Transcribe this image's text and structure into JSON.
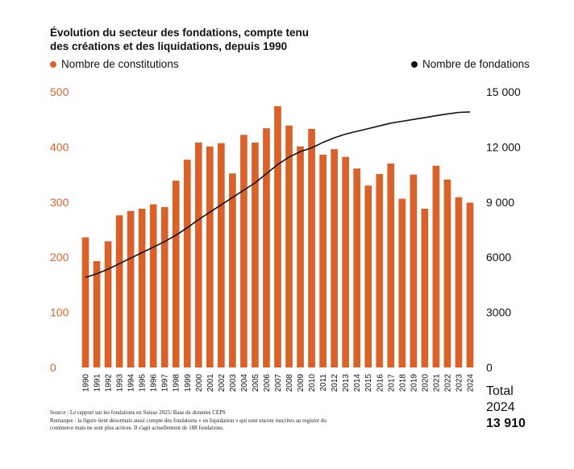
{
  "title": "Évolution du secteur des fondations, compte tenu des créations et des liquidations, depuis 1990",
  "legend": {
    "bars": "Nombre de constitutions",
    "line": "Nombre de fondations"
  },
  "colors": {
    "bar": "#D9622B",
    "line": "#111111",
    "left_axis": "#D9622B",
    "right_axis": "#111111"
  },
  "total": {
    "label": "Total",
    "year": "2024",
    "value": "13 910"
  },
  "source": {
    "line1": "Source : Le rapport sur les fondations en Suisse 2025/ Base de données CEPS",
    "line2": "Remarque : la figure tient désormais aussi compte des fondations « en liquidation » qui sont encore inscrites au registre du commerce mais ne sont plus actives. Il s'agit actuellement de 188 fondations."
  },
  "chart_data": {
    "type": "bar",
    "title": "Évolution du secteur des fondations, compte tenu des créations et des liquidations, depuis 1990",
    "categories": [
      "1990",
      "1991",
      "1992",
      "1993",
      "1994",
      "1995",
      "1996",
      "1997",
      "1998",
      "1999",
      "2000",
      "2001",
      "2002",
      "2003",
      "2004",
      "2005",
      "2006",
      "2007",
      "2008",
      "2009",
      "2010",
      "2011",
      "2012",
      "2013",
      "2014",
      "2015",
      "2016",
      "2017",
      "2018",
      "2019",
      "2020",
      "2021",
      "2022",
      "2023",
      "2024"
    ],
    "series": [
      {
        "name": "Nombre de constitutions",
        "type": "bar",
        "axis": "left",
        "values": [
          236,
          193,
          229,
          276,
          284,
          288,
          296,
          291,
          339,
          377,
          408,
          401,
          407,
          352,
          422,
          408,
          434,
          474,
          439,
          401,
          433,
          386,
          396,
          382,
          361,
          330,
          351,
          370,
          306,
          350,
          288,
          366,
          341,
          309,
          299
        ]
      },
      {
        "name": "Nombre de fondations",
        "type": "line",
        "axis": "right",
        "values": [
          4900,
          5100,
          5350,
          5650,
          5950,
          6250,
          6550,
          6850,
          7200,
          7600,
          8050,
          8450,
          8850,
          9250,
          9650,
          10050,
          10550,
          11050,
          11450,
          11750,
          11950,
          12250,
          12500,
          12700,
          12850,
          13000,
          13150,
          13300,
          13400,
          13500,
          13600,
          13700,
          13800,
          13880,
          13910
        ]
      }
    ],
    "y_left": {
      "ylim": [
        0,
        500
      ],
      "ticks": [
        "0",
        "100",
        "200",
        "300",
        "400",
        "500"
      ]
    },
    "y_right": {
      "ylim": [
        0,
        15000
      ],
      "ticks": [
        "0",
        "3000",
        "6000",
        "9 000",
        "12 000",
        "15 000"
      ]
    },
    "grid": false,
    "legend_position": "top"
  }
}
